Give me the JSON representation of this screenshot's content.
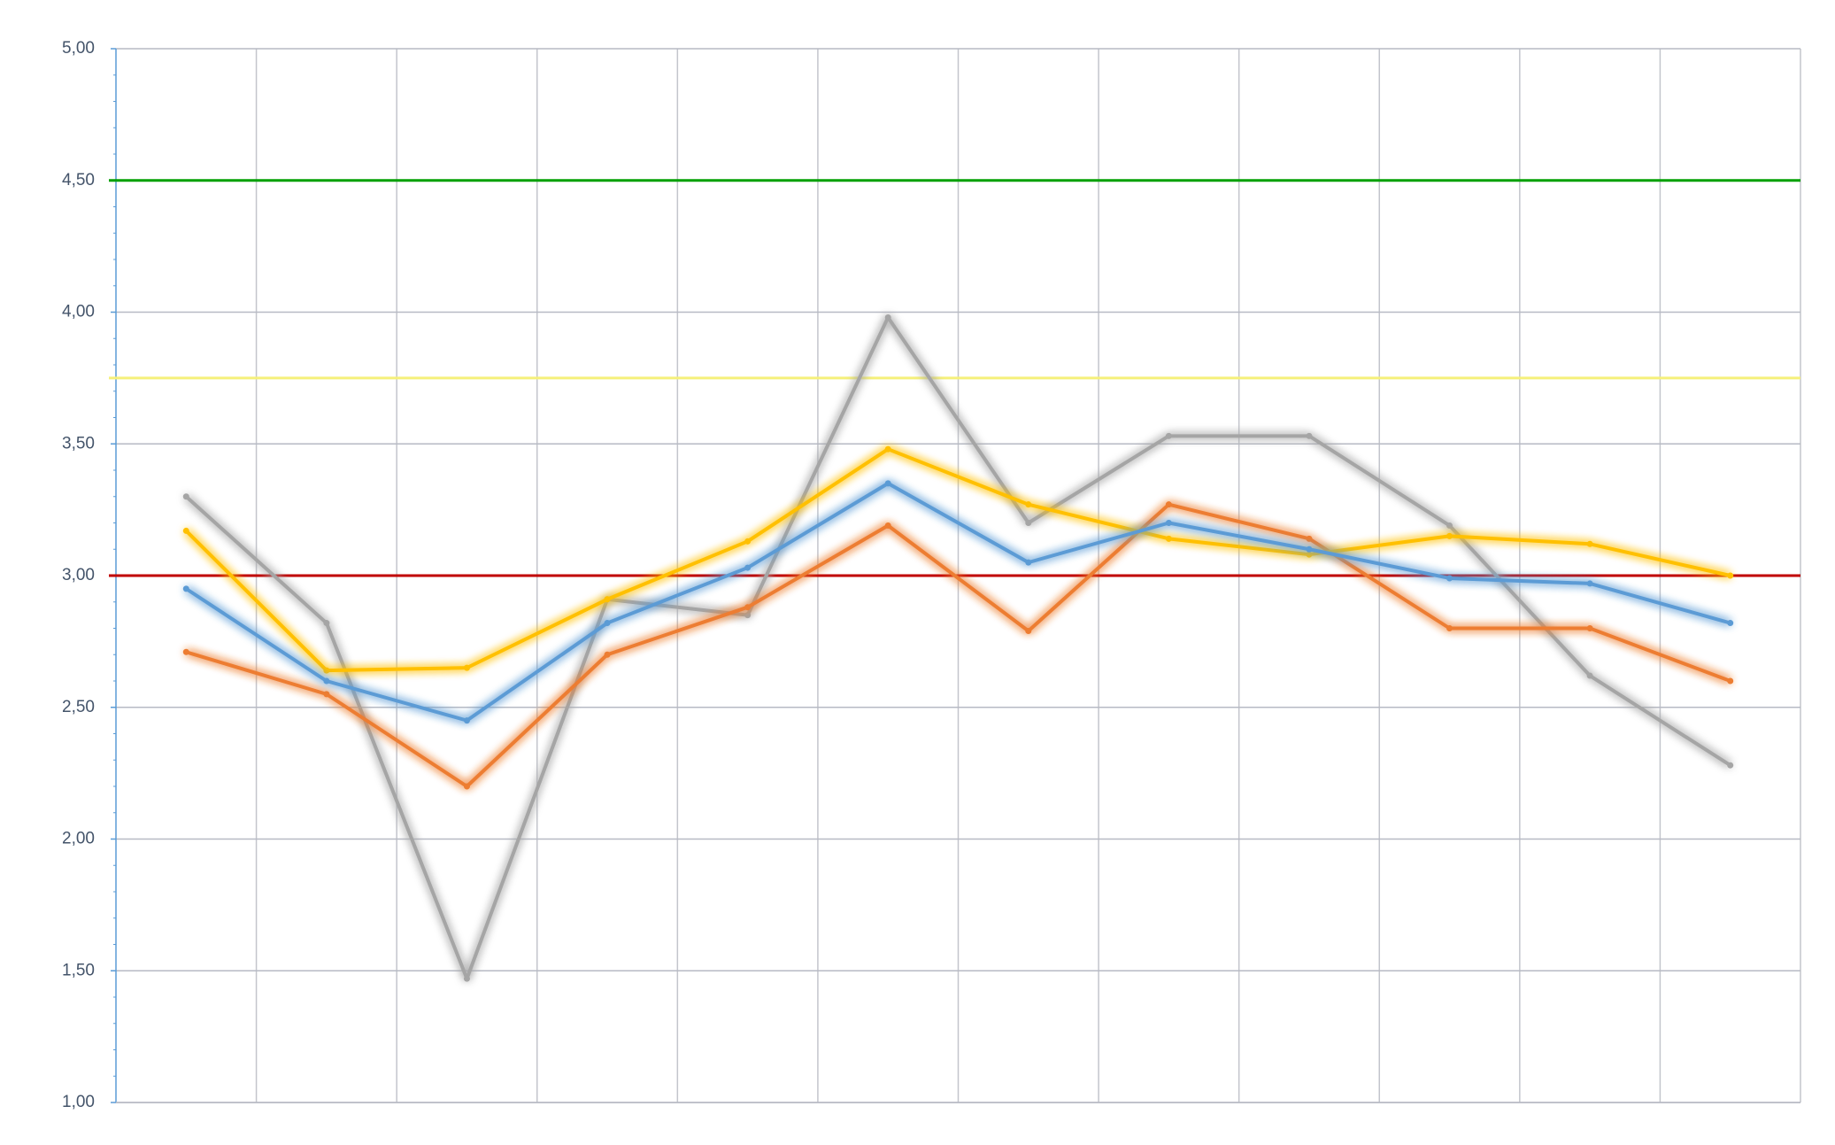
{
  "chart_data": {
    "type": "line",
    "categories": [
      null,
      null,
      null,
      null,
      null,
      null,
      null,
      null,
      null,
      null,
      null,
      null
    ],
    "series": [
      {
        "color": "#a5a5a5",
        "values": [
          3.3,
          2.82,
          1.47,
          2.91,
          2.85,
          3.98,
          3.2,
          3.53,
          3.53,
          3.19,
          2.62,
          2.28
        ]
      },
      {
        "color": "#ed7d31",
        "values": [
          2.71,
          2.55,
          2.2,
          2.7,
          2.88,
          3.19,
          2.79,
          3.27,
          3.14,
          2.8,
          2.8,
          2.6
        ]
      },
      {
        "color": "#ffc000",
        "values": [
          3.17,
          2.64,
          2.65,
          2.91,
          3.13,
          3.48,
          3.27,
          3.14,
          3.08,
          3.15,
          3.12,
          3.0
        ]
      },
      {
        "color": "#5b9bd5",
        "values": [
          2.95,
          2.6,
          2.45,
          2.82,
          3.03,
          3.35,
          3.05,
          3.2,
          3.1,
          2.99,
          2.97,
          2.82
        ]
      }
    ],
    "reference_lines": [
      {
        "value": 4.5,
        "color": "#00a000",
        "glow": "#7fdc5f"
      },
      {
        "value": 3.75,
        "color": "#f5f07a",
        "glow": "#fbf38a"
      },
      {
        "value": 3.0,
        "color": "#c00000",
        "glow": "#ee8080"
      }
    ],
    "ylim": [
      1,
      5
    ],
    "yticks": [
      {
        "value": 1,
        "label": "1,00"
      },
      {
        "value": 1.5,
        "label": "1,50"
      },
      {
        "value": 2,
        "label": "2,00"
      },
      {
        "value": 2.5,
        "label": "2,50"
      },
      {
        "value": 3,
        "label": "3,00"
      },
      {
        "value": 3.5,
        "label": "3,50"
      },
      {
        "value": 4,
        "label": "4,00"
      },
      {
        "value": 4.5,
        "label": "4,50"
      },
      {
        "value": 5,
        "label": "5,00"
      }
    ],
    "grid": true
  }
}
